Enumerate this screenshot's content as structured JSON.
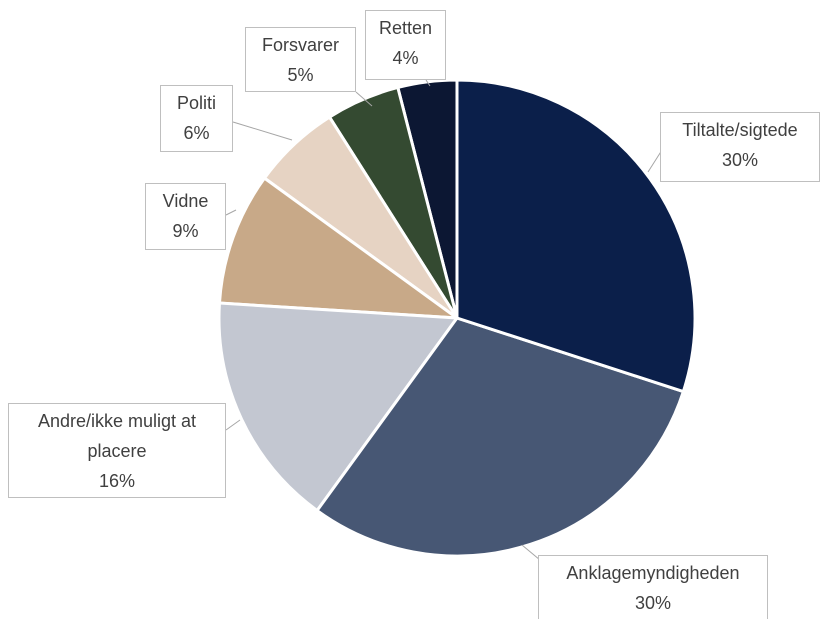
{
  "chart_data": {
    "type": "pie",
    "categories": [
      "Tiltalte/sigtede",
      "Anklagemyndigheden",
      "Andre/ikke muligt at placere",
      "Vidne",
      "Politi",
      "Forsvarer",
      "Retten"
    ],
    "values": [
      30,
      30,
      16,
      9,
      6,
      5,
      4
    ],
    "value_labels": [
      "30%",
      "30%",
      "16%",
      "9%",
      "6%",
      "5%",
      "4%"
    ],
    "colors": [
      "#0b1f4a",
      "#475774",
      "#c3c7d1",
      "#c8a988",
      "#e6d3c3",
      "#344a31",
      "#0c1733"
    ]
  }
}
